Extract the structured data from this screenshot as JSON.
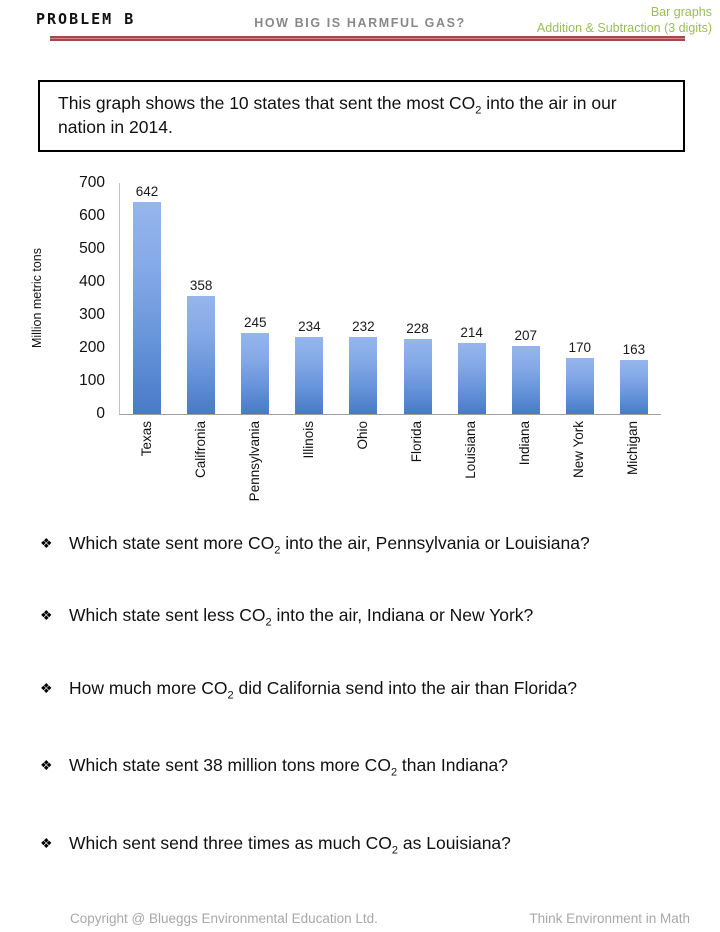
{
  "header": {
    "problem_label": "PROBLEM B",
    "title": "HOW BIG IS HARMFUL GAS?",
    "topic_line1": "Bar graphs",
    "topic_line2": "Addition & Subtraction (3 digits)",
    "accent_green": "#9abd56",
    "rule_color": "#a4494b"
  },
  "intro": {
    "pre": "This graph shows the 10 states that sent the most CO",
    "sub": "2",
    "post": " into the air in our nation in 2014."
  },
  "chart_data": {
    "type": "bar",
    "title": "",
    "categories": [
      "Texas",
      "Califronia",
      "Pennsylvania",
      "Illinois",
      "Ohio",
      "Florida",
      "Louisiana",
      "Indiana",
      "New York",
      "Michigan"
    ],
    "values": [
      642,
      358,
      245,
      234,
      232,
      228,
      214,
      207,
      170,
      163
    ],
    "xlabel": "",
    "ylabel": "Million metric tons",
    "ylim": [
      0,
      700
    ],
    "yticks": [
      0,
      100,
      200,
      300,
      400,
      500,
      600,
      700
    ],
    "grid": false,
    "legend": false,
    "bar_color_top": "#95b5ec",
    "bar_color_bottom": "#4a7ac6"
  },
  "questions": [
    {
      "bullet": "❖",
      "pre": "Which state sent more CO",
      "sub": "2",
      "post": " into the air, Pennsylvania or Louisiana?"
    },
    {
      "bullet": "❖",
      "pre": "Which state sent less CO",
      "sub": "2",
      "post": " into the air, Indiana or New York?"
    },
    {
      "bullet": "❖",
      "pre": "How much more CO",
      "sub": "2",
      "post": " did California send into the air than Florida?"
    },
    {
      "bullet": "❖",
      "pre": "Which state sent 38 million tons more CO",
      "sub": "2",
      "post": " than Indiana?"
    },
    {
      "bullet": "❖",
      "pre": "Which sent send three times as much CO",
      "sub": "2",
      "post": " as Louisiana?"
    }
  ],
  "footer": {
    "copyright": "Copyright @ Blueggs Environmental Education Ltd.",
    "tagline": "Think Environment in Math"
  }
}
